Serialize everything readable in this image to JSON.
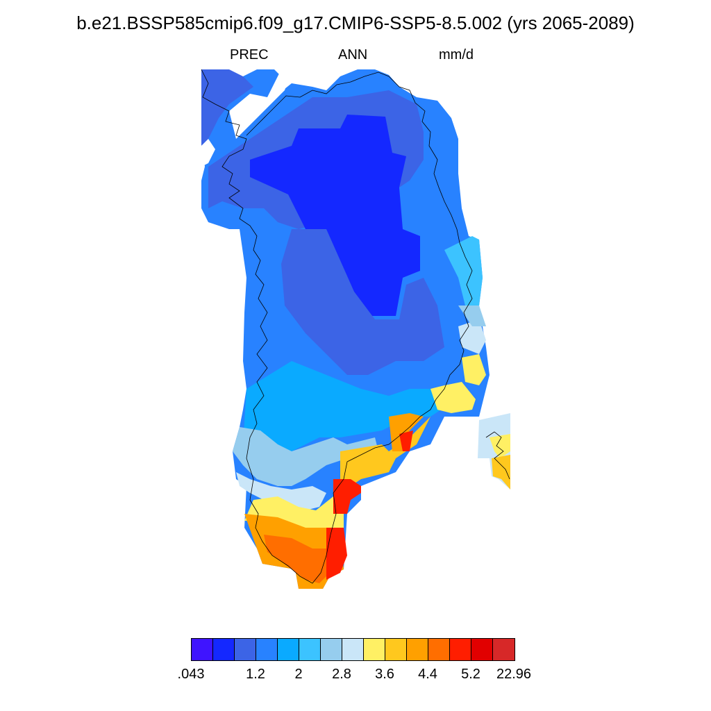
{
  "title": "b.e21.BSSP585cmip6.f09_g17.CMIP6-SSP5-8.5.002 (yrs 2065-2089)",
  "variable": "PREC",
  "season": "ANN",
  "units": "mm/d",
  "map_region": "Greenland",
  "colorbar": {
    "colors": [
      "#3f14ff",
      "#1428ff",
      "#3c64e6",
      "#2882ff",
      "#0aaaff",
      "#3cc3ff",
      "#96cdee",
      "#cae6f8",
      "#fff064",
      "#ffc81e",
      "#ffa000",
      "#ff6e00",
      "#ff1e00",
      "#e10000",
      "#d72828"
    ],
    "labels": [
      ".043",
      "1.2",
      "2",
      "2.8",
      "3.6",
      "4.4",
      "5.2",
      "22.96"
    ],
    "label_bins": [
      0,
      3,
      5,
      7,
      9,
      11,
      13,
      15
    ]
  }
}
